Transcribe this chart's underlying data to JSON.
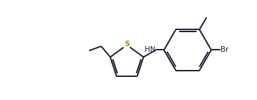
{
  "bg_color": "#ffffff",
  "bond_color": "#1a1a2e",
  "text_color": "#1a1a2e",
  "S_color": "#b8860b",
  "Br_color": "#1a1a2e",
  "line_width": 1.4,
  "figsize": [
    3.66,
    1.43
  ],
  "dpi": 100,
  "xlim": [
    0,
    10
  ],
  "ylim": [
    0,
    3.9
  ]
}
